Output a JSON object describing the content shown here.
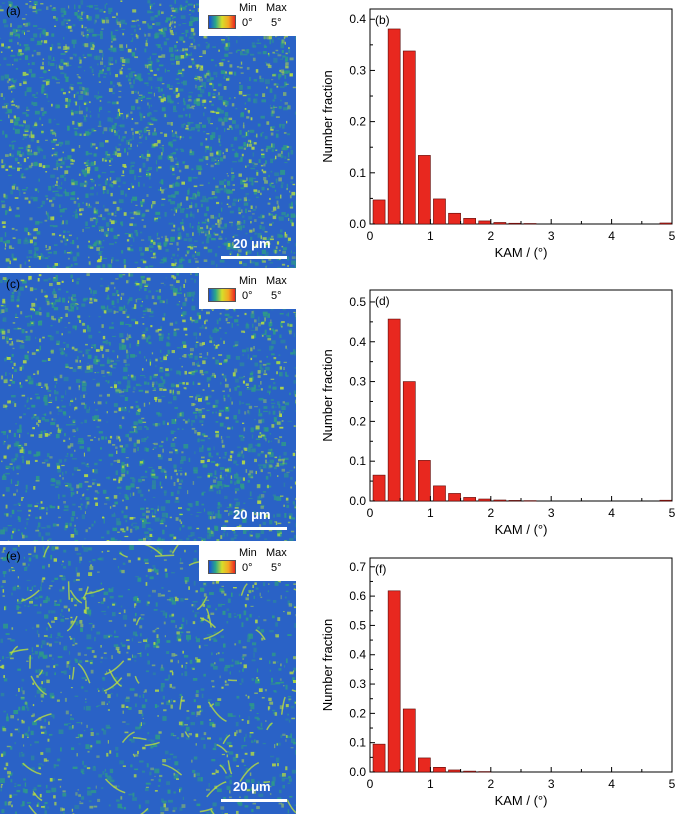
{
  "maps": [
    {
      "id": "a",
      "label": "(a)",
      "legend_min": "Min",
      "legend_max": "Max",
      "legend_min_val": "0°",
      "legend_max_val": "5°",
      "scalebar": "20 μm"
    },
    {
      "id": "c",
      "label": "(c)",
      "legend_min": "Min",
      "legend_max": "Max",
      "legend_min_val": "0°",
      "legend_max_val": "5°",
      "scalebar": "20 μm"
    },
    {
      "id": "e",
      "label": "(e)",
      "legend_min": "Min",
      "legend_max": "Max",
      "legend_min_val": "0°",
      "legend_max_val": "5°",
      "scalebar": "20 μm"
    }
  ],
  "colors": {
    "bar_fill": "#e8281f",
    "bar_stroke": "#5a0a08",
    "map_base": "#2a62c6",
    "map_mid": "#2e9c86",
    "map_high": "#b9df3e"
  },
  "chart_data": [
    {
      "type": "bar",
      "panel": "(b)",
      "title": "",
      "xlabel": "KAM / (°)",
      "ylabel": "Number fraction",
      "x": [
        0.15,
        0.4,
        0.65,
        0.9,
        1.15,
        1.4,
        1.65,
        1.9,
        2.15,
        2.4,
        2.65,
        4.9
      ],
      "values": [
        0.047,
        0.381,
        0.338,
        0.134,
        0.049,
        0.021,
        0.011,
        0.006,
        0.003,
        0.0015,
        0.001,
        0.002
      ],
      "xlim": [
        0,
        5
      ],
      "ylim": [
        0,
        0.42
      ],
      "xticks": [
        "0",
        "1",
        "2",
        "3",
        "4",
        "5"
      ],
      "yticks": [
        "0.0",
        "0.1",
        "0.2",
        "0.3",
        "0.4"
      ],
      "ytick_values": [
        0,
        0.1,
        0.2,
        0.3,
        0.4
      ]
    },
    {
      "type": "bar",
      "panel": "(d)",
      "title": "",
      "xlabel": "KAM / (°)",
      "ylabel": "Number fraction",
      "x": [
        0.15,
        0.4,
        0.65,
        0.9,
        1.15,
        1.4,
        1.65,
        1.9,
        2.15,
        2.4,
        2.65,
        4.9
      ],
      "values": [
        0.065,
        0.457,
        0.3,
        0.102,
        0.038,
        0.019,
        0.009,
        0.005,
        0.0025,
        0.0015,
        0.001,
        0.002
      ],
      "xlim": [
        0,
        5
      ],
      "ylim": [
        0,
        0.53
      ],
      "xticks": [
        "0",
        "1",
        "2",
        "3",
        "4",
        "5"
      ],
      "yticks": [
        "0.0",
        "0.1",
        "0.2",
        "0.3",
        "0.4",
        "0.5"
      ],
      "ytick_values": [
        0,
        0.1,
        0.2,
        0.3,
        0.4,
        0.5
      ]
    },
    {
      "type": "bar",
      "panel": "(f)",
      "title": "",
      "xlabel": "KAM / (°)",
      "ylabel": "Number fraction",
      "x": [
        0.15,
        0.4,
        0.65,
        0.9,
        1.15,
        1.4,
        1.65,
        1.9
      ],
      "values": [
        0.095,
        0.618,
        0.215,
        0.048,
        0.016,
        0.007,
        0.003,
        0.0015
      ],
      "xlim": [
        0,
        5
      ],
      "ylim": [
        0,
        0.73
      ],
      "xticks": [
        "0",
        "1",
        "2",
        "3",
        "4",
        "5"
      ],
      "yticks": [
        "0.0",
        "0.1",
        "0.2",
        "0.3",
        "0.4",
        "0.5",
        "0.6",
        "0.7"
      ],
      "ytick_values": [
        0,
        0.1,
        0.2,
        0.3,
        0.4,
        0.5,
        0.6,
        0.7
      ]
    }
  ]
}
